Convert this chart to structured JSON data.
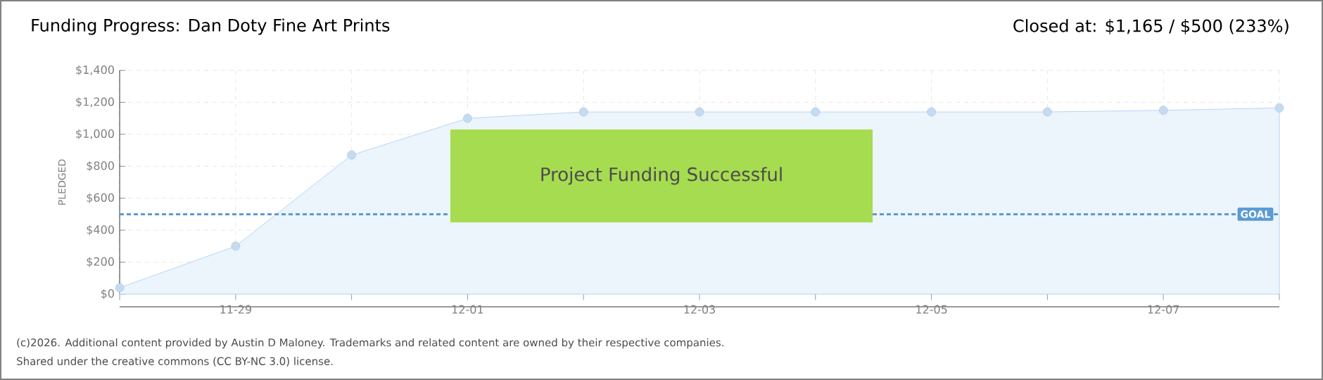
{
  "chart_data": {
    "type": "area",
    "title": "Funding Progress: Dan Doty Fine Art Prints",
    "subtitle": "Closed at: $1,165 / $500 (233%)",
    "ylabel": "PLEDGED",
    "categories": [
      null,
      "11-29",
      null,
      "12-01",
      null,
      "12-03",
      null,
      "12-05",
      null,
      "12-07",
      null
    ],
    "values": [
      40,
      300,
      870,
      1100,
      1140,
      1140,
      1140,
      1140,
      1140,
      1150,
      1165
    ],
    "color": "#a9cdf0",
    "marker": "circle",
    "grid": true,
    "ylim": [
      0,
      1400
    ],
    "yticks": [
      {
        "value": 0,
        "label": "$0"
      },
      {
        "value": 200,
        "label": "$200"
      },
      {
        "value": 400,
        "label": "$400"
      },
      {
        "value": 600,
        "label": "$600"
      },
      {
        "value": 800,
        "label": "$800"
      },
      {
        "value": 1000,
        "label": "$1,000"
      },
      {
        "value": 1200,
        "label": "$1,200"
      },
      {
        "value": 1400,
        "label": "$1,400"
      }
    ],
    "ref_lines": [
      {
        "axis": "y",
        "value": 500,
        "label": "GOAL",
        "color": "#5b9bd5",
        "line_style": "dashed"
      }
    ],
    "annotations": [
      "Project Funding Successful",
      "(c)2026. Additional content provided by Austin D Maloney. Trademarks and related content are owned by their respective companies.",
      "Shared under the creative commons (CC BY-NC 3.0) license."
    ]
  }
}
